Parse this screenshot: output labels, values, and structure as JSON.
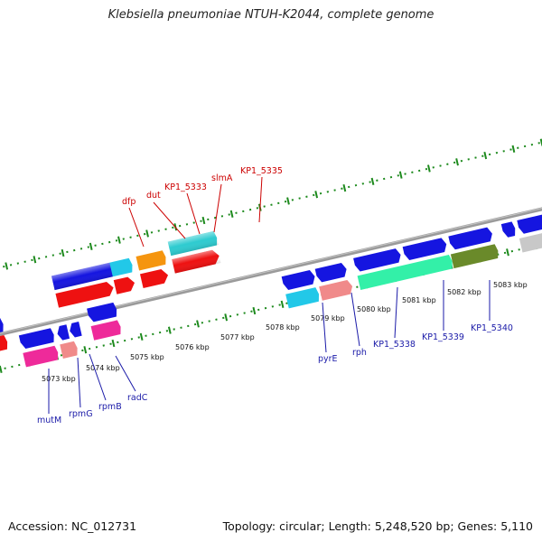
{
  "title": "Klebsiella pneumoniae NTUH-K2044, complete genome",
  "accession": "Accession: NC_012731",
  "topology": "Topology: circular; Length: 5,248,520 bp; Genes: 5,110",
  "kbp_ticks": [
    "5073 kbp",
    "5074 kbp",
    "5075 kbp",
    "5076 kbp",
    "5077 kbp",
    "5078 kbp",
    "5079 kbp",
    "5080 kbp",
    "5081 kbp",
    "5082 kbp",
    "5083 kbp"
  ],
  "upper_labels": [
    "dfp",
    "dut",
    "KP1_5333",
    "slmA",
    "KP1_5335"
  ],
  "lower_labels": [
    "mutM",
    "rpmG",
    "rpmB",
    "radC",
    "pyrE",
    "rph",
    "KP1_5338",
    "KP1_5339",
    "KP1_5340"
  ],
  "colors": {
    "upper_label": "#cc0000",
    "lower_label": "#1a1aa8",
    "tick": "#1d8a1d",
    "backbone": "#9a9a9a",
    "blue": "#1515e0",
    "red": "#ee1111",
    "cyan": "#22c8e8",
    "orange": "#f5950f",
    "teal": "#2ecbd0",
    "pink": "#ee2a9a",
    "salmon": "#f08a8a",
    "mint": "#33f0a8",
    "olive": "#6a8a2a",
    "grey": "#c8c8c8"
  }
}
